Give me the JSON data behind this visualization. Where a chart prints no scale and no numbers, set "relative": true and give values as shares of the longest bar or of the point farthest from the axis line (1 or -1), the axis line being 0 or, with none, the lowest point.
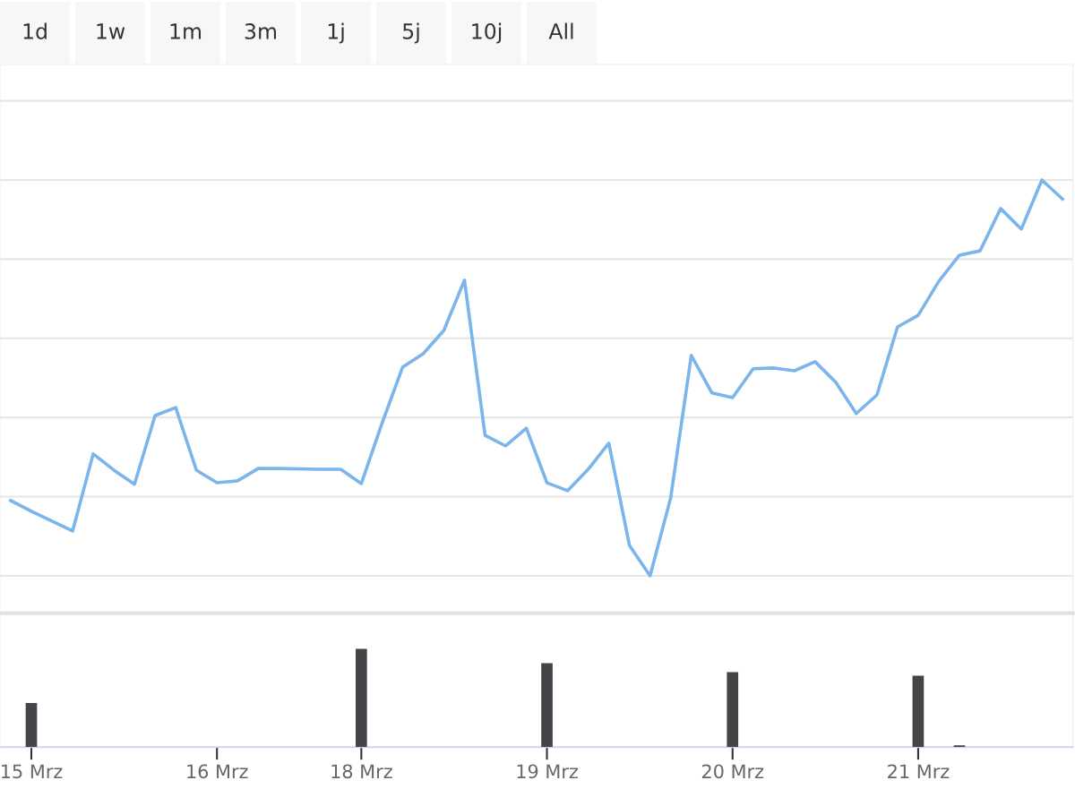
{
  "chart_data": [
    {
      "type": "line",
      "relative": true,
      "grid": "y",
      "tick_labels": false,
      "annotations": [
        "1d",
        "1w",
        "1m",
        "3m",
        "1j",
        "5j",
        "10j",
        "All"
      ],
      "categories": [
        null,
        null,
        null,
        null,
        null,
        null,
        null,
        null,
        null,
        null,
        null,
        null,
        null,
        null,
        null,
        null,
        null,
        null,
        null,
        null,
        null,
        null,
        null,
        null,
        null,
        null,
        null,
        null,
        null,
        null,
        null,
        null,
        null,
        null,
        null,
        null,
        null,
        null,
        null,
        null,
        null,
        null,
        null,
        null,
        null,
        null,
        null,
        null,
        null,
        null,
        null,
        null
      ],
      "series": [
        {
          "color": "#7cb5ec",
          "values": [
            0.19,
            0.163,
            null,
            0.113,
            0.308,
            0.267,
            0.231,
            0.405,
            0.425,
            0.267,
            0.235,
            0.24,
            0.271,
            0.271,
            null,
            0.269,
            0.269,
            0.233,
            0.385,
            0.527,
            0.561,
            0.62,
            0.747,
            0.355,
            0.328,
            0.373,
            0.235,
            0.215,
            0.269,
            0.335,
            0.077,
            0,
            0.197,
            0.557,
            0.462,
            0.45,
            0.523,
            0.525,
            0.518,
            0.541,
            0.489,
            0.41,
            0.457,
            0.629,
            0.658,
            0.744,
            0.81,
            0.821,
            0.928,
            0.876,
            1,
            0.952
          ]
        }
      ]
    },
    {
      "type": "bar",
      "relative": true,
      "tick_labels": "x",
      "categories": [
        null,
        "15 Mrz",
        null,
        null,
        null,
        null,
        null,
        null,
        null,
        null,
        "16 Mrz",
        null,
        null,
        null,
        null,
        null,
        null,
        "18 Mrz",
        null,
        null,
        null,
        null,
        null,
        null,
        null,
        null,
        "19 Mrz",
        null,
        null,
        null,
        null,
        null,
        null,
        null,
        null,
        "20 Mrz",
        null,
        null,
        null,
        null,
        null,
        null,
        null,
        null,
        "21 Mrz",
        null,
        null,
        null,
        null,
        null,
        null,
        null
      ],
      "series": [
        {
          "color": "#434348",
          "values": [
            null,
            0.45,
            null,
            null,
            null,
            null,
            null,
            null,
            null,
            null,
            null,
            null,
            null,
            null,
            null,
            null,
            null,
            1,
            null,
            null,
            null,
            null,
            null,
            null,
            null,
            null,
            0.855,
            null,
            null,
            null,
            null,
            null,
            null,
            null,
            null,
            0.764,
            null,
            null,
            null,
            null,
            null,
            null,
            null,
            null,
            0.727,
            null,
            0.018,
            null,
            null,
            null,
            null,
            null
          ]
        }
      ]
    }
  ]
}
